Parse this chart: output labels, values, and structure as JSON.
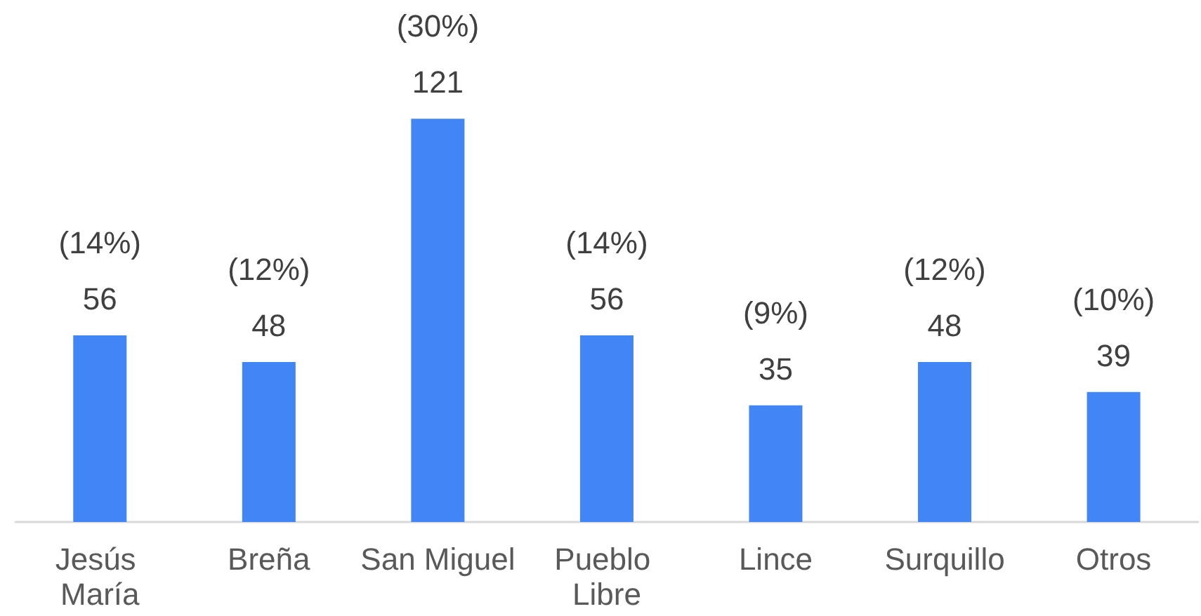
{
  "chart_data": {
    "type": "bar",
    "categories": [
      "Jesús María",
      "Breña",
      "San Miguel",
      "Pueblo Libre",
      "Lince",
      "Surquillo",
      "Otros"
    ],
    "values": [
      56,
      48,
      121,
      56,
      35,
      48,
      39
    ],
    "color": "#4285f4",
    "value_labels": [
      "(14%)\n56",
      "(12%)\n48",
      "(30%)\n121",
      "(14%)\n56",
      "(9%)\n35",
      "(12%)\n48",
      "(10%)\n39"
    ]
  }
}
